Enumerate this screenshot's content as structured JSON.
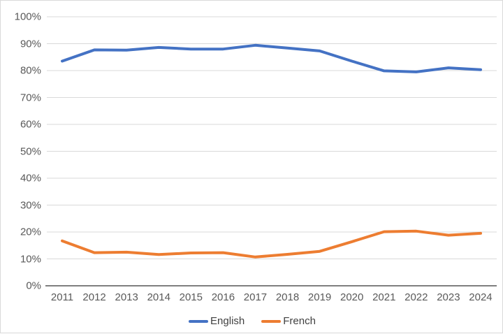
{
  "chart_data": {
    "type": "line",
    "title": "",
    "xlabel": "",
    "ylabel": "",
    "categories": [
      "2011",
      "2012",
      "2013",
      "2014",
      "2015",
      "2016",
      "2017",
      "2018",
      "2019",
      "2020",
      "2021",
      "2022",
      "2023",
      "2024"
    ],
    "series": [
      {
        "name": "English",
        "color": "#4472C4",
        "values": [
          83.5,
          87.7,
          87.6,
          88.6,
          88.0,
          88.0,
          89.4,
          88.4,
          87.3,
          83.5,
          79.9,
          79.5,
          81.0,
          80.3
        ]
      },
      {
        "name": "French",
        "color": "#ED7D31",
        "values": [
          16.7,
          12.3,
          12.5,
          11.6,
          12.2,
          12.3,
          10.7,
          11.7,
          12.8,
          16.4,
          20.1,
          20.3,
          18.8,
          19.5
        ]
      }
    ],
    "ylim": [
      0,
      100
    ],
    "ytick_step": 10,
    "ytick_suffix": "%",
    "grid": "horizontal",
    "legend_position": "bottom"
  },
  "styles": {
    "gridline_color": "#d9d9d9",
    "axis_line_color": "#7f7f7f",
    "tick_label_color": "#595959",
    "legend_text_color": "#404040",
    "background": "#ffffff",
    "border_color": "#d9d9d9",
    "line_width": 4
  }
}
